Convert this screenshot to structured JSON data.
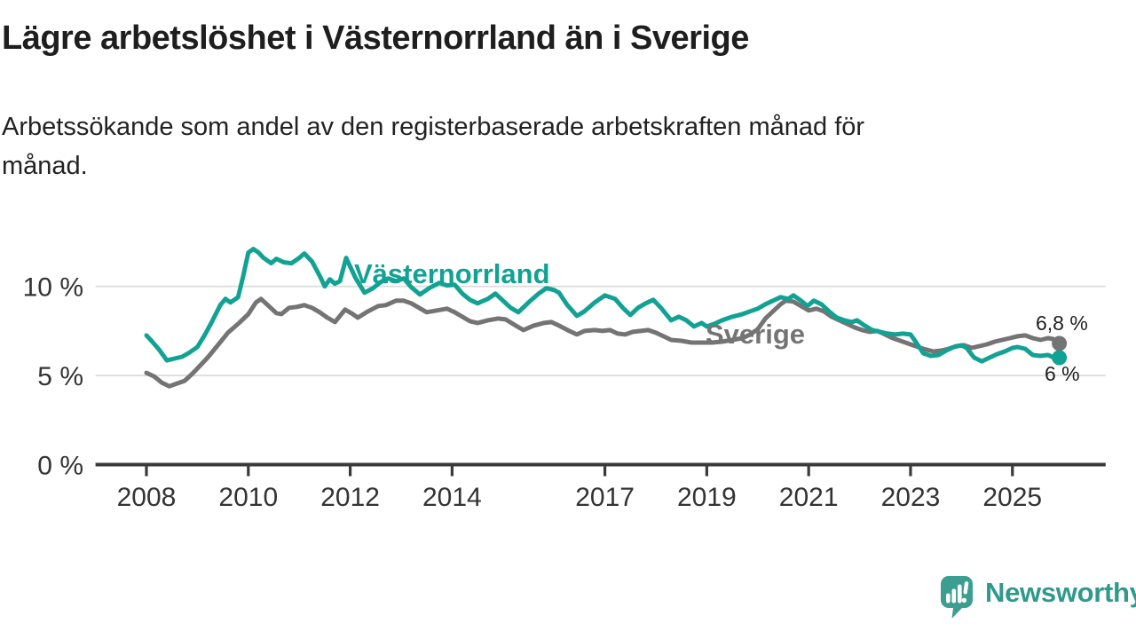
{
  "header": {
    "title": "Lägre arbetslöshet i Västernorrland än i Sverige",
    "subtitle": "Arbetssökande som andel av den registerbaserade arbetskraften månad för månad.",
    "subtitle_lines": [
      "Arbetssökande som andel av den registerbaserade arbetskraften månad för",
      "månad."
    ]
  },
  "footer": {
    "brand": "Newsworthy",
    "brand_color": "#2f9a8c",
    "logo_mark_color": "#3c9e90"
  },
  "chart_data": {
    "type": "line",
    "title": "Lägre arbetslöshet i Västernorrland än i Sverige",
    "subtitle": "Arbetssökande som andel av den registerbaserade arbetskraften månad för månad.",
    "xlabel": "",
    "ylabel": "",
    "grid": "horizontal",
    "legend_position": "inline-labels",
    "colors": {
      "grid": "#dcdcdc",
      "axis": "#3a3a3a",
      "tick_text": "#333333"
    },
    "x_axis": {
      "range": [
        2007.0,
        2026.83
      ],
      "ticks": [
        {
          "value": 2008,
          "label": "2008"
        },
        {
          "value": 2010,
          "label": "2010"
        },
        {
          "value": 2012,
          "label": "2012"
        },
        {
          "value": 2014,
          "label": "2014"
        },
        {
          "value": 2017,
          "label": "2017"
        },
        {
          "value": 2019,
          "label": "2019"
        },
        {
          "value": 2021,
          "label": "2021"
        },
        {
          "value": 2023,
          "label": "2023"
        },
        {
          "value": 2025,
          "label": "2025"
        }
      ]
    },
    "y_axis": {
      "range": [
        0,
        13
      ],
      "unit": "%",
      "ticks": [
        {
          "value": 0,
          "label": "0 %"
        },
        {
          "value": 5,
          "label": "5 %"
        },
        {
          "value": 10,
          "label": "10 %"
        }
      ]
    },
    "series": [
      {
        "id": "sverige",
        "name": "Sverige",
        "color": "#747474",
        "end_label": "6,8 %",
        "end_value": 6.8,
        "points": [
          [
            2008.0,
            5.15
          ],
          [
            2008.15,
            4.95
          ],
          [
            2008.3,
            4.6
          ],
          [
            2008.45,
            4.4
          ],
          [
            2008.6,
            4.55
          ],
          [
            2008.75,
            4.7
          ],
          [
            2008.9,
            5.1
          ],
          [
            2009.05,
            5.55
          ],
          [
            2009.2,
            6.0
          ],
          [
            2009.4,
            6.7
          ],
          [
            2009.6,
            7.4
          ],
          [
            2009.8,
            7.9
          ],
          [
            2010.0,
            8.45
          ],
          [
            2010.15,
            9.1
          ],
          [
            2010.25,
            9.3
          ],
          [
            2010.4,
            8.9
          ],
          [
            2010.55,
            8.5
          ],
          [
            2010.65,
            8.45
          ],
          [
            2010.8,
            8.8
          ],
          [
            2010.95,
            8.85
          ],
          [
            2011.1,
            8.95
          ],
          [
            2011.25,
            8.8
          ],
          [
            2011.4,
            8.55
          ],
          [
            2011.55,
            8.25
          ],
          [
            2011.7,
            8.0
          ],
          [
            2011.9,
            8.7
          ],
          [
            2012.05,
            8.45
          ],
          [
            2012.15,
            8.25
          ],
          [
            2012.35,
            8.6
          ],
          [
            2012.55,
            8.9
          ],
          [
            2012.7,
            8.95
          ],
          [
            2012.9,
            9.2
          ],
          [
            2013.05,
            9.2
          ],
          [
            2013.2,
            9.05
          ],
          [
            2013.35,
            8.8
          ],
          [
            2013.5,
            8.55
          ],
          [
            2013.7,
            8.65
          ],
          [
            2013.9,
            8.75
          ],
          [
            2014.05,
            8.55
          ],
          [
            2014.2,
            8.3
          ],
          [
            2014.35,
            8.05
          ],
          [
            2014.5,
            7.95
          ],
          [
            2014.7,
            8.1
          ],
          [
            2014.9,
            8.2
          ],
          [
            2015.05,
            8.15
          ],
          [
            2015.25,
            7.8
          ],
          [
            2015.4,
            7.55
          ],
          [
            2015.6,
            7.8
          ],
          [
            2015.8,
            7.95
          ],
          [
            2015.95,
            8.0
          ],
          [
            2016.1,
            7.8
          ],
          [
            2016.3,
            7.5
          ],
          [
            2016.45,
            7.3
          ],
          [
            2016.6,
            7.5
          ],
          [
            2016.8,
            7.55
          ],
          [
            2016.95,
            7.5
          ],
          [
            2017.1,
            7.55
          ],
          [
            2017.25,
            7.35
          ],
          [
            2017.4,
            7.3
          ],
          [
            2017.55,
            7.45
          ],
          [
            2017.7,
            7.5
          ],
          [
            2017.85,
            7.55
          ],
          [
            2018.0,
            7.4
          ],
          [
            2018.15,
            7.2
          ],
          [
            2018.3,
            7.0
          ],
          [
            2018.5,
            6.95
          ],
          [
            2018.7,
            6.85
          ],
          [
            2018.9,
            6.85
          ],
          [
            2019.1,
            6.85
          ],
          [
            2019.3,
            6.9
          ],
          [
            2019.5,
            7.0
          ],
          [
            2019.7,
            7.1
          ],
          [
            2019.85,
            7.3
          ],
          [
            2020.0,
            7.6
          ],
          [
            2020.15,
            8.2
          ],
          [
            2020.3,
            8.6
          ],
          [
            2020.45,
            9.0
          ],
          [
            2020.55,
            9.2
          ],
          [
            2020.7,
            9.15
          ],
          [
            2020.85,
            8.9
          ],
          [
            2021.0,
            8.65
          ],
          [
            2021.15,
            8.75
          ],
          [
            2021.3,
            8.6
          ],
          [
            2021.45,
            8.3
          ],
          [
            2021.6,
            8.1
          ],
          [
            2021.75,
            7.9
          ],
          [
            2021.9,
            7.7
          ],
          [
            2022.05,
            7.55
          ],
          [
            2022.2,
            7.45
          ],
          [
            2022.35,
            7.5
          ],
          [
            2022.5,
            7.3
          ],
          [
            2022.65,
            7.1
          ],
          [
            2022.8,
            6.95
          ],
          [
            2022.95,
            6.8
          ],
          [
            2023.1,
            6.65
          ],
          [
            2023.25,
            6.5
          ],
          [
            2023.45,
            6.35
          ],
          [
            2023.6,
            6.4
          ],
          [
            2023.75,
            6.5
          ],
          [
            2023.9,
            6.65
          ],
          [
            2024.05,
            6.7
          ],
          [
            2024.2,
            6.55
          ],
          [
            2024.35,
            6.65
          ],
          [
            2024.5,
            6.75
          ],
          [
            2024.65,
            6.9
          ],
          [
            2024.8,
            7.0
          ],
          [
            2024.95,
            7.1
          ],
          [
            2025.1,
            7.2
          ],
          [
            2025.25,
            7.25
          ],
          [
            2025.4,
            7.1
          ],
          [
            2025.55,
            7.0
          ],
          [
            2025.7,
            7.1
          ],
          [
            2025.8,
            7.05
          ],
          [
            2025.92,
            6.8
          ]
        ]
      },
      {
        "id": "vasternorrland",
        "name": "Västernorrland",
        "color": "#12a293",
        "end_label": "6 %",
        "end_value": 6.0,
        "points": [
          [
            2008.0,
            7.25
          ],
          [
            2008.1,
            6.95
          ],
          [
            2008.25,
            6.45
          ],
          [
            2008.4,
            5.85
          ],
          [
            2008.55,
            5.95
          ],
          [
            2008.7,
            6.05
          ],
          [
            2008.85,
            6.3
          ],
          [
            2009.0,
            6.6
          ],
          [
            2009.15,
            7.3
          ],
          [
            2009.3,
            8.1
          ],
          [
            2009.45,
            8.95
          ],
          [
            2009.55,
            9.3
          ],
          [
            2009.65,
            9.1
          ],
          [
            2009.8,
            9.4
          ],
          [
            2009.9,
            10.6
          ],
          [
            2010.0,
            11.9
          ],
          [
            2010.1,
            12.1
          ],
          [
            2010.2,
            11.9
          ],
          [
            2010.3,
            11.6
          ],
          [
            2010.45,
            11.3
          ],
          [
            2010.55,
            11.55
          ],
          [
            2010.7,
            11.35
          ],
          [
            2010.85,
            11.3
          ],
          [
            2011.0,
            11.6
          ],
          [
            2011.1,
            11.85
          ],
          [
            2011.25,
            11.4
          ],
          [
            2011.4,
            10.6
          ],
          [
            2011.5,
            10.0
          ],
          [
            2011.6,
            10.4
          ],
          [
            2011.7,
            10.15
          ],
          [
            2011.8,
            10.3
          ],
          [
            2011.92,
            11.6
          ],
          [
            2012.1,
            10.5
          ],
          [
            2012.28,
            9.65
          ],
          [
            2012.45,
            9.9
          ],
          [
            2012.6,
            10.25
          ],
          [
            2012.75,
            10.45
          ],
          [
            2012.9,
            10.3
          ],
          [
            2013.05,
            10.45
          ],
          [
            2013.2,
            9.95
          ],
          [
            2013.37,
            9.55
          ],
          [
            2013.55,
            9.9
          ],
          [
            2013.75,
            10.2
          ],
          [
            2013.9,
            10.05
          ],
          [
            2014.05,
            10.1
          ],
          [
            2014.2,
            9.6
          ],
          [
            2014.35,
            9.25
          ],
          [
            2014.5,
            9.05
          ],
          [
            2014.7,
            9.3
          ],
          [
            2014.85,
            9.6
          ],
          [
            2015.0,
            9.2
          ],
          [
            2015.15,
            8.8
          ],
          [
            2015.3,
            8.55
          ],
          [
            2015.5,
            9.1
          ],
          [
            2015.7,
            9.6
          ],
          [
            2015.85,
            9.9
          ],
          [
            2016.0,
            9.8
          ],
          [
            2016.1,
            9.65
          ],
          [
            2016.25,
            9.0
          ],
          [
            2016.45,
            8.35
          ],
          [
            2016.6,
            8.6
          ],
          [
            2016.8,
            9.1
          ],
          [
            2017.0,
            9.5
          ],
          [
            2017.2,
            9.3
          ],
          [
            2017.35,
            8.8
          ],
          [
            2017.5,
            8.4
          ],
          [
            2017.65,
            8.8
          ],
          [
            2017.8,
            9.05
          ],
          [
            2017.95,
            9.25
          ],
          [
            2018.1,
            8.8
          ],
          [
            2018.3,
            8.1
          ],
          [
            2018.45,
            8.3
          ],
          [
            2018.6,
            8.1
          ],
          [
            2018.75,
            7.75
          ],
          [
            2018.9,
            7.95
          ],
          [
            2019.0,
            7.75
          ],
          [
            2019.15,
            7.9
          ],
          [
            2019.3,
            8.1
          ],
          [
            2019.5,
            8.3
          ],
          [
            2019.7,
            8.45
          ],
          [
            2019.85,
            8.6
          ],
          [
            2020.0,
            8.75
          ],
          [
            2020.15,
            9.0
          ],
          [
            2020.3,
            9.2
          ],
          [
            2020.45,
            9.4
          ],
          [
            2020.6,
            9.3
          ],
          [
            2020.7,
            9.5
          ],
          [
            2020.85,
            9.2
          ],
          [
            2020.98,
            8.9
          ],
          [
            2021.1,
            9.2
          ],
          [
            2021.25,
            9.0
          ],
          [
            2021.4,
            8.6
          ],
          [
            2021.55,
            8.25
          ],
          [
            2021.7,
            8.1
          ],
          [
            2021.85,
            8.0
          ],
          [
            2021.95,
            8.1
          ],
          [
            2022.1,
            7.8
          ],
          [
            2022.25,
            7.55
          ],
          [
            2022.4,
            7.45
          ],
          [
            2022.55,
            7.35
          ],
          [
            2022.7,
            7.3
          ],
          [
            2022.85,
            7.35
          ],
          [
            2023.0,
            7.3
          ],
          [
            2023.1,
            6.9
          ],
          [
            2023.25,
            6.25
          ],
          [
            2023.4,
            6.1
          ],
          [
            2023.55,
            6.15
          ],
          [
            2023.7,
            6.4
          ],
          [
            2023.85,
            6.6
          ],
          [
            2024.0,
            6.7
          ],
          [
            2024.1,
            6.55
          ],
          [
            2024.25,
            6.0
          ],
          [
            2024.4,
            5.8
          ],
          [
            2024.55,
            6.0
          ],
          [
            2024.7,
            6.2
          ],
          [
            2024.85,
            6.35
          ],
          [
            2025.0,
            6.55
          ],
          [
            2025.1,
            6.6
          ],
          [
            2025.25,
            6.5
          ],
          [
            2025.4,
            6.15
          ],
          [
            2025.55,
            6.1
          ],
          [
            2025.7,
            6.15
          ],
          [
            2025.85,
            5.95
          ],
          [
            2025.92,
            6.0
          ]
        ]
      }
    ]
  }
}
